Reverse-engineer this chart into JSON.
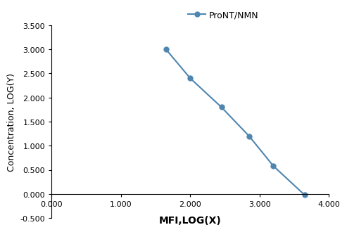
{
  "x_data": [
    1.65,
    2.0,
    2.45,
    2.85,
    3.2,
    3.65
  ],
  "y_data": [
    3.0,
    2.4,
    1.8,
    1.2,
    0.58,
    -0.02
  ],
  "line_color": "#4f86b0",
  "marker_color": "#4f86b0",
  "marker_style": "o",
  "marker_size": 5,
  "line_width": 1.5,
  "legend_label": "ProNT/NMN",
  "xlabel": "MFI,LOG(X)",
  "ylabel": "Concentration, LOG(Y)",
  "xlim": [
    0.0,
    4.0
  ],
  "ylim": [
    -0.5,
    3.5
  ],
  "xticks": [
    0.0,
    1.0,
    2.0,
    3.0,
    4.0
  ],
  "yticks": [
    -0.5,
    0.0,
    0.5,
    1.0,
    1.5,
    2.0,
    2.5,
    3.0,
    3.5
  ],
  "xlabel_fontsize": 10,
  "ylabel_fontsize": 9,
  "tick_fontsize": 8,
  "legend_fontsize": 9,
  "background_color": "#ffffff",
  "spine_color": "#000000"
}
